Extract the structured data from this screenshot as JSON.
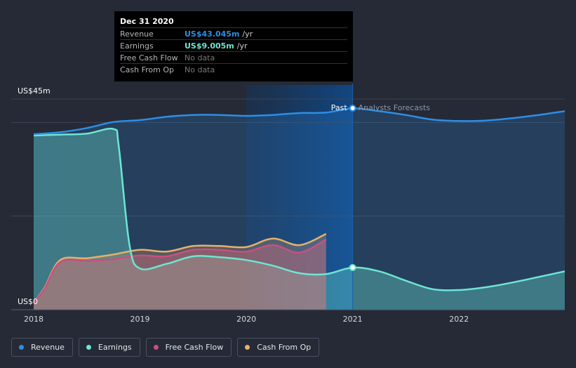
{
  "chart_data": {
    "type": "area",
    "title": "",
    "xlabel": "",
    "ylabel": "",
    "y_top_label": "US$45m",
    "y_bottom_label": "US$0",
    "ylim": [
      0,
      45
    ],
    "xlim": [
      2018,
      2022.995
    ],
    "x_ticks": [
      {
        "value": 2018,
        "label": "2018"
      },
      {
        "value": 2019,
        "label": "2019"
      },
      {
        "value": 2020,
        "label": "2020"
      },
      {
        "value": 2021,
        "label": "2021"
      },
      {
        "value": 2022,
        "label": "2022"
      }
    ],
    "past_label": "Past",
    "forecast_label": "Analysts Forecasts",
    "divider_x": 2021,
    "highlight_start_x": 2020,
    "series": [
      {
        "name": "Revenue",
        "color": "#2d8ee6",
        "x": [
          2018,
          2018.25,
          2018.5,
          2018.75,
          2019,
          2019.25,
          2019.5,
          2019.75,
          2020,
          2020.25,
          2020.5,
          2020.75,
          2021,
          2021.25,
          2021.5,
          2021.75,
          2022,
          2022.25,
          2022.5,
          2022.75,
          2022.995
        ],
        "values": [
          37.5,
          37.9,
          38.8,
          40.1,
          40.5,
          41.2,
          41.6,
          41.6,
          41.4,
          41.6,
          42.0,
          42.1,
          43.0,
          42.4,
          41.6,
          40.6,
          40.3,
          40.4,
          40.9,
          41.6,
          42.4
        ]
      },
      {
        "name": "Earnings",
        "color": "#6ee6d2",
        "x": [
          2018,
          2018.25,
          2018.5,
          2018.75,
          2018.8,
          2018.9,
          2019,
          2019.25,
          2019.5,
          2019.75,
          2020,
          2020.25,
          2020.5,
          2020.75,
          2021,
          2021.25,
          2021.5,
          2021.75,
          2022,
          2022.25,
          2022.5,
          2022.75,
          2022.995
        ],
        "values": [
          37.2,
          37.4,
          37.6,
          38.6,
          35.0,
          14.0,
          8.8,
          9.8,
          11.4,
          11.2,
          10.6,
          9.4,
          7.8,
          7.6,
          9.0,
          8.2,
          6.2,
          4.4,
          4.2,
          4.8,
          5.8,
          7.0,
          8.2
        ]
      },
      {
        "name": "Free Cash Flow",
        "color": "#c94f82",
        "x": [
          2018,
          2018.1,
          2018.25,
          2018.5,
          2018.75,
          2019,
          2019.25,
          2019.5,
          2019.75,
          2020,
          2020.25,
          2020.5,
          2020.75
        ],
        "values": [
          1.5,
          4.4,
          10.2,
          10.4,
          10.8,
          11.6,
          11.4,
          12.8,
          12.8,
          12.4,
          13.8,
          12.2,
          15.0
        ]
      },
      {
        "name": "Cash From Op",
        "color": "#e8b06a",
        "x": [
          2018,
          2018.1,
          2018.25,
          2018.5,
          2018.75,
          2019,
          2019.25,
          2019.5,
          2019.75,
          2020,
          2020.25,
          2020.5,
          2020.75
        ],
        "values": [
          1.5,
          4.6,
          10.6,
          11.0,
          11.8,
          12.8,
          12.4,
          13.6,
          13.6,
          13.4,
          15.2,
          13.8,
          16.2
        ]
      }
    ],
    "markers": [
      {
        "series": "Revenue",
        "x": 2021,
        "value": 43.045
      },
      {
        "series": "Earnings",
        "x": 2021,
        "value": 9.005
      }
    ]
  },
  "tooltip": {
    "title": "Dec 31 2020",
    "rows": [
      {
        "label": "Revenue",
        "value": "US$43.045m",
        "unit": "/yr",
        "color": "#2d8ee6"
      },
      {
        "label": "Earnings",
        "value": "US$9.005m",
        "unit": "/yr",
        "color": "#6ee6d2"
      },
      {
        "label": "Free Cash Flow",
        "nodata": "No data"
      },
      {
        "label": "Cash From Op",
        "nodata": "No data"
      }
    ]
  },
  "legend": [
    {
      "label": "Revenue",
      "color": "#2d8ee6"
    },
    {
      "label": "Earnings",
      "color": "#6ee6d2"
    },
    {
      "label": "Free Cash Flow",
      "color": "#c94f82"
    },
    {
      "label": "Cash From Op",
      "color": "#e8b06a"
    }
  ]
}
